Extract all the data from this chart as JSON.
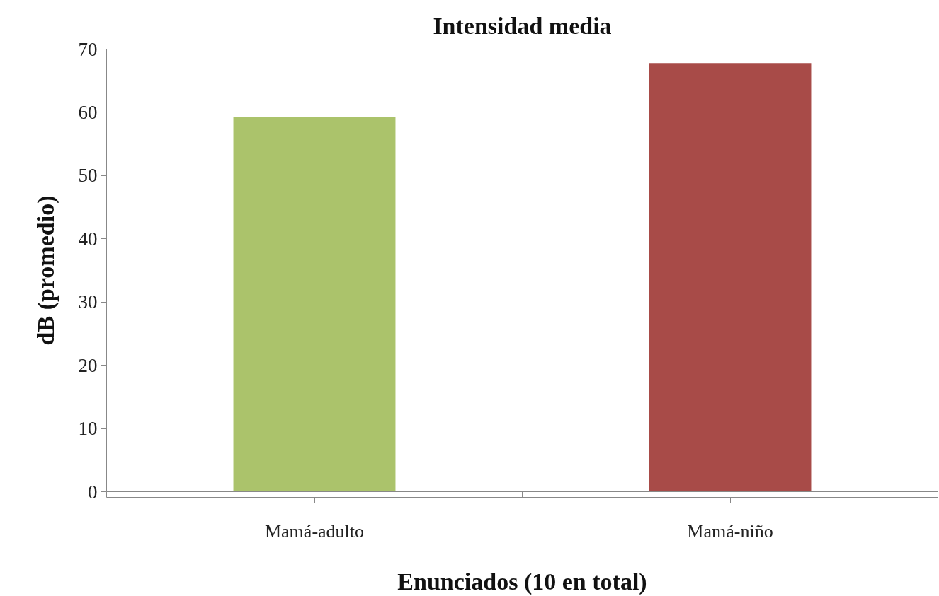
{
  "chart_data": {
    "type": "bar",
    "title": "Intensidad media",
    "xlabel": "Enunciados (10 en total)",
    "ylabel": "dB (promedio)",
    "categories": [
      "Mamá-adulto",
      "Mamá-niño"
    ],
    "values": [
      59.2,
      67.8
    ],
    "colors": [
      "#abc36b",
      "#a84b48"
    ],
    "ylim": [
      0,
      70
    ],
    "yticks": [
      0,
      10,
      20,
      30,
      40,
      50,
      60,
      70
    ],
    "grid": false
  }
}
